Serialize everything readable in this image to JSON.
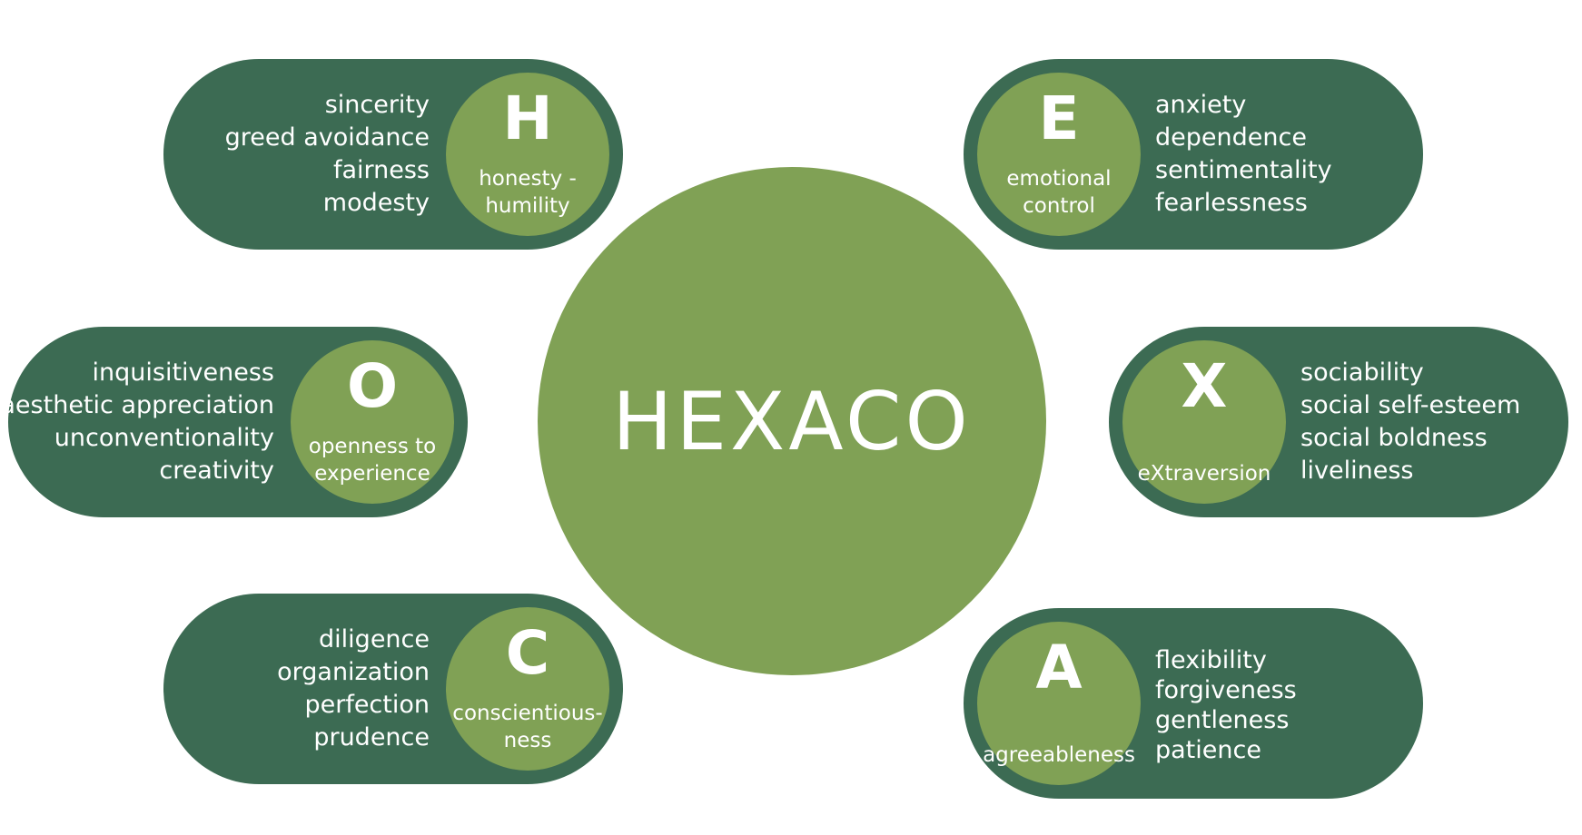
{
  "title": "HEXACO",
  "colors": {
    "dark_green": "#3c6b53",
    "light_green": "#80a155",
    "text": "#ffffff",
    "background": "#ffffff"
  },
  "factors": {
    "h": {
      "letter": "H",
      "name": "honesty -\nhumility",
      "facets": [
        "sincerity",
        "greed avoidance",
        "fairness",
        "modesty"
      ]
    },
    "e": {
      "letter": "E",
      "name": "emotional\ncontrol",
      "facets": [
        "anxiety",
        "dependence",
        "sentimentality",
        "fearlessness"
      ]
    },
    "o": {
      "letter": "O",
      "name": "openness to\nexperience",
      "facets": [
        "inquisitiveness",
        "aesthetic appreciation",
        "unconventionality",
        "creativity"
      ]
    },
    "x": {
      "letter": "X",
      "name": "eXtraversion",
      "facets": [
        "sociability",
        "social self-esteem",
        "social boldness",
        "liveliness"
      ]
    },
    "c": {
      "letter": "C",
      "name": "conscientious-\nness",
      "facets": [
        "diligence",
        "organization",
        "perfection",
        "prudence"
      ]
    },
    "a": {
      "letter": "A",
      "name": "agreeableness",
      "facets": [
        "flexibility",
        "forgiveness",
        "gentleness",
        "patience"
      ]
    }
  }
}
